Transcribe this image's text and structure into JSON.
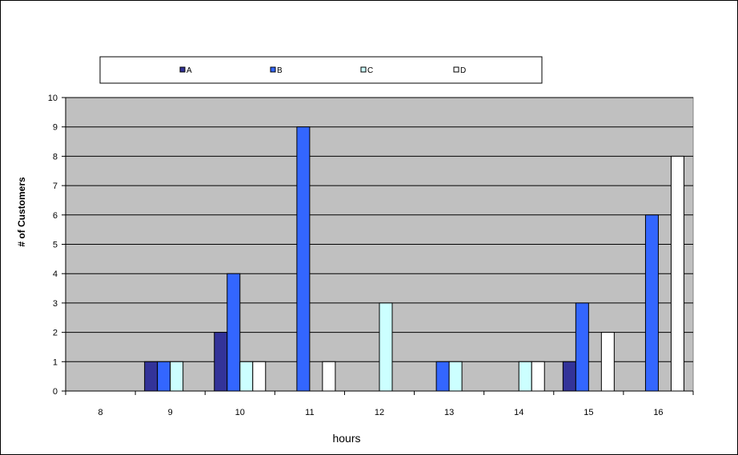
{
  "chart_data": {
    "type": "bar",
    "categories": [
      "8",
      "9",
      "10",
      "11",
      "12",
      "13",
      "14",
      "15",
      "16"
    ],
    "series": [
      {
        "name": "A",
        "color": "#333399",
        "values": [
          0,
          1,
          2,
          0,
          0,
          0,
          0,
          1,
          0
        ]
      },
      {
        "name": "B",
        "color": "#3366FF",
        "values": [
          0,
          1,
          4,
          9,
          0,
          1,
          0,
          3,
          6
        ]
      },
      {
        "name": "C",
        "color": "#CCFFFF",
        "values": [
          0,
          1,
          1,
          0,
          3,
          1,
          1,
          0,
          0
        ]
      },
      {
        "name": "D",
        "color": "#FFFFFF",
        "values": [
          0,
          0,
          1,
          1,
          0,
          0,
          1,
          2,
          8
        ]
      }
    ],
    "title": "",
    "xlabel": "hours",
    "ylabel": "# of Customers",
    "ylim": [
      0,
      10
    ],
    "yticks": [
      "0",
      "1",
      "2",
      "3",
      "4",
      "5",
      "6",
      "7",
      "8",
      "9",
      "10"
    ],
    "grid": true,
    "legend": "top",
    "plot_background": "#C0C0C0"
  }
}
